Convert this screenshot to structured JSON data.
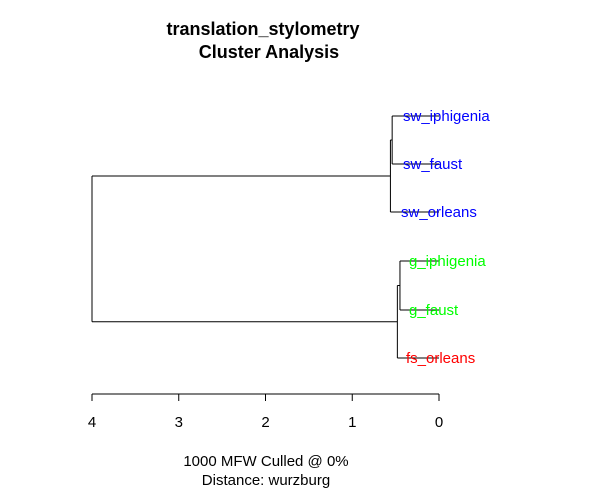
{
  "chart_data": {
    "type": "dendrogram",
    "title": "translation_stylometry",
    "subtitle": "Cluster Analysis",
    "xlabel": "1000 MFW  Culled @ 0%",
    "xlabel2": "Distance: wurzburg",
    "xlim": [
      4,
      0
    ],
    "ticks": [
      "4",
      "3",
      "2",
      "1",
      "0"
    ],
    "leaves": [
      {
        "label": "sw_iphigenia",
        "color": "#0000ff"
      },
      {
        "label": "sw_faust",
        "color": "#0000ff"
      },
      {
        "label": "sw_orleans",
        "color": "#0000ff"
      },
      {
        "label": "g_iphigenia",
        "color": "#00ff00"
      },
      {
        "label": "g_faust",
        "color": "#00ff00"
      },
      {
        "label": "fs_orleans",
        "color": "#ff0000"
      }
    ],
    "merges": [
      {
        "a": "sw_iphigenia",
        "b": "sw_faust",
        "height": 0.54
      },
      {
        "a": "g_iphigenia",
        "b": "g_faust",
        "height": 0.45
      },
      {
        "a": "[sw_iphigenia+sw_faust]",
        "b": "sw_orleans",
        "height": 0.56
      },
      {
        "a": "[g_iphigenia+g_faust]",
        "b": "fs_orleans",
        "height": 0.48
      },
      {
        "a": "[sw]",
        "b": "[g+fs]",
        "height": 4.0
      }
    ]
  }
}
